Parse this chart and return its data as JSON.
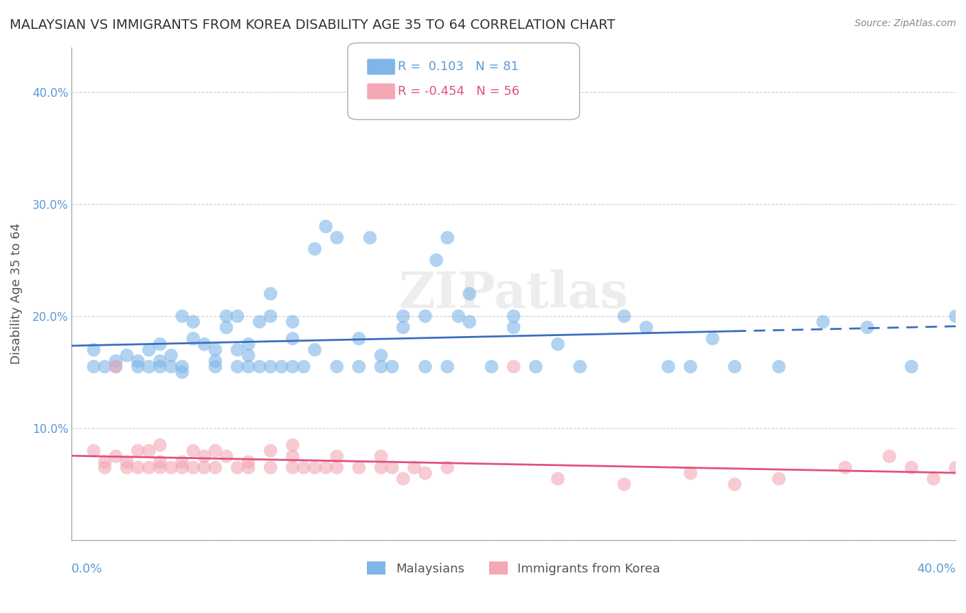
{
  "title": "MALAYSIAN VS IMMIGRANTS FROM KOREA DISABILITY AGE 35 TO 64 CORRELATION CHART",
  "source": "Source: ZipAtlas.com",
  "ylabel": "Disability Age 35 to 64",
  "xlim": [
    0.0,
    0.4
  ],
  "ylim": [
    0.0,
    0.44
  ],
  "r_blue": 0.103,
  "n_blue": 81,
  "r_pink": -0.454,
  "n_pink": 56,
  "color_blue": "#7EB6E8",
  "color_pink": "#F4A7B5",
  "line_color_blue": "#3A6EBF",
  "line_color_pink": "#E05080",
  "legend_label_blue": "Malaysians",
  "legend_label_pink": "Immigrants from Korea",
  "blue_points": [
    [
      0.01,
      0.155
    ],
    [
      0.01,
      0.17
    ],
    [
      0.015,
      0.155
    ],
    [
      0.02,
      0.155
    ],
    [
      0.02,
      0.16
    ],
    [
      0.025,
      0.165
    ],
    [
      0.03,
      0.155
    ],
    [
      0.03,
      0.16
    ],
    [
      0.035,
      0.155
    ],
    [
      0.035,
      0.17
    ],
    [
      0.04,
      0.155
    ],
    [
      0.04,
      0.175
    ],
    [
      0.04,
      0.16
    ],
    [
      0.045,
      0.155
    ],
    [
      0.045,
      0.165
    ],
    [
      0.05,
      0.155
    ],
    [
      0.05,
      0.15
    ],
    [
      0.05,
      0.2
    ],
    [
      0.055,
      0.195
    ],
    [
      0.055,
      0.18
    ],
    [
      0.06,
      0.175
    ],
    [
      0.065,
      0.155
    ],
    [
      0.065,
      0.16
    ],
    [
      0.065,
      0.17
    ],
    [
      0.07,
      0.19
    ],
    [
      0.07,
      0.2
    ],
    [
      0.075,
      0.155
    ],
    [
      0.075,
      0.17
    ],
    [
      0.075,
      0.2
    ],
    [
      0.08,
      0.155
    ],
    [
      0.08,
      0.165
    ],
    [
      0.08,
      0.175
    ],
    [
      0.085,
      0.155
    ],
    [
      0.085,
      0.195
    ],
    [
      0.09,
      0.155
    ],
    [
      0.09,
      0.2
    ],
    [
      0.09,
      0.22
    ],
    [
      0.095,
      0.155
    ],
    [
      0.1,
      0.155
    ],
    [
      0.1,
      0.18
    ],
    [
      0.1,
      0.195
    ],
    [
      0.105,
      0.155
    ],
    [
      0.11,
      0.17
    ],
    [
      0.11,
      0.26
    ],
    [
      0.115,
      0.28
    ],
    [
      0.12,
      0.27
    ],
    [
      0.12,
      0.155
    ],
    [
      0.13,
      0.155
    ],
    [
      0.13,
      0.18
    ],
    [
      0.135,
      0.27
    ],
    [
      0.14,
      0.155
    ],
    [
      0.14,
      0.165
    ],
    [
      0.145,
      0.155
    ],
    [
      0.15,
      0.19
    ],
    [
      0.15,
      0.2
    ],
    [
      0.16,
      0.155
    ],
    [
      0.16,
      0.2
    ],
    [
      0.165,
      0.25
    ],
    [
      0.17,
      0.155
    ],
    [
      0.17,
      0.27
    ],
    [
      0.175,
      0.2
    ],
    [
      0.18,
      0.195
    ],
    [
      0.18,
      0.22
    ],
    [
      0.19,
      0.155
    ],
    [
      0.2,
      0.19
    ],
    [
      0.2,
      0.2
    ],
    [
      0.21,
      0.155
    ],
    [
      0.22,
      0.175
    ],
    [
      0.23,
      0.155
    ],
    [
      0.25,
      0.2
    ],
    [
      0.26,
      0.19
    ],
    [
      0.27,
      0.155
    ],
    [
      0.28,
      0.155
    ],
    [
      0.29,
      0.18
    ],
    [
      0.3,
      0.155
    ],
    [
      0.32,
      0.155
    ],
    [
      0.34,
      0.195
    ],
    [
      0.36,
      0.19
    ],
    [
      0.38,
      0.155
    ],
    [
      0.4,
      0.2
    ]
  ],
  "pink_points": [
    [
      0.01,
      0.08
    ],
    [
      0.015,
      0.065
    ],
    [
      0.015,
      0.07
    ],
    [
      0.02,
      0.075
    ],
    [
      0.02,
      0.155
    ],
    [
      0.025,
      0.065
    ],
    [
      0.025,
      0.07
    ],
    [
      0.03,
      0.065
    ],
    [
      0.03,
      0.08
    ],
    [
      0.035,
      0.065
    ],
    [
      0.035,
      0.08
    ],
    [
      0.04,
      0.065
    ],
    [
      0.04,
      0.07
    ],
    [
      0.04,
      0.085
    ],
    [
      0.045,
      0.065
    ],
    [
      0.05,
      0.065
    ],
    [
      0.05,
      0.07
    ],
    [
      0.055,
      0.065
    ],
    [
      0.055,
      0.08
    ],
    [
      0.06,
      0.065
    ],
    [
      0.06,
      0.075
    ],
    [
      0.065,
      0.065
    ],
    [
      0.065,
      0.08
    ],
    [
      0.07,
      0.075
    ],
    [
      0.075,
      0.065
    ],
    [
      0.08,
      0.065
    ],
    [
      0.08,
      0.07
    ],
    [
      0.09,
      0.065
    ],
    [
      0.09,
      0.08
    ],
    [
      0.1,
      0.065
    ],
    [
      0.1,
      0.075
    ],
    [
      0.1,
      0.085
    ],
    [
      0.105,
      0.065
    ],
    [
      0.11,
      0.065
    ],
    [
      0.115,
      0.065
    ],
    [
      0.12,
      0.065
    ],
    [
      0.12,
      0.075
    ],
    [
      0.13,
      0.065
    ],
    [
      0.14,
      0.065
    ],
    [
      0.14,
      0.075
    ],
    [
      0.145,
      0.065
    ],
    [
      0.15,
      0.055
    ],
    [
      0.155,
      0.065
    ],
    [
      0.16,
      0.06
    ],
    [
      0.17,
      0.065
    ],
    [
      0.2,
      0.155
    ],
    [
      0.22,
      0.055
    ],
    [
      0.25,
      0.05
    ],
    [
      0.28,
      0.06
    ],
    [
      0.3,
      0.05
    ],
    [
      0.32,
      0.055
    ],
    [
      0.35,
      0.065
    ],
    [
      0.37,
      0.075
    ],
    [
      0.38,
      0.065
    ],
    [
      0.39,
      0.055
    ],
    [
      0.4,
      0.065
    ]
  ]
}
